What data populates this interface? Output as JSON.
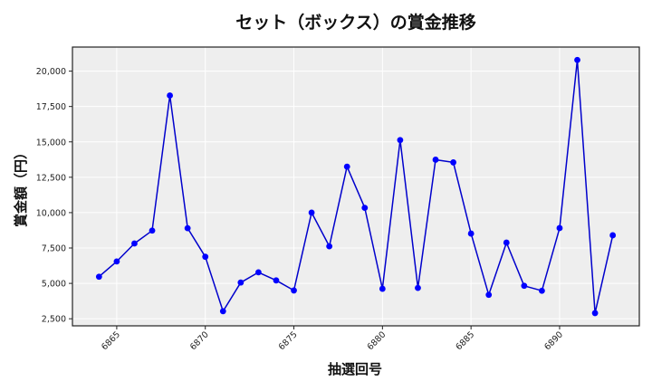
{
  "chart_data": {
    "type": "line",
    "title": "セット（ボックス）の賞金推移",
    "xlabel": "抽選回号",
    "ylabel": "賞金額（円）",
    "x": [
      6864,
      6865,
      6866,
      6867,
      6868,
      6869,
      6870,
      6871,
      6872,
      6873,
      6874,
      6875,
      6876,
      6877,
      6878,
      6879,
      6880,
      6881,
      6882,
      6883,
      6884,
      6885,
      6886,
      6887,
      6888,
      6889,
      6890,
      6891,
      6892,
      6893
    ],
    "series": [
      {
        "name": "賞金額",
        "color": "#0000cc",
        "marker_color": "#0000ff",
        "values": [
          5470,
          6550,
          7820,
          8730,
          18280,
          8900,
          6880,
          3030,
          5060,
          5780,
          5210,
          4500,
          10000,
          7620,
          13250,
          10340,
          4620,
          15130,
          4680,
          13740,
          13550,
          8520,
          4190,
          7880,
          4830,
          4480,
          8910,
          20790,
          2900,
          8400
        ]
      }
    ],
    "xticks": [
      6865,
      6870,
      6875,
      6880,
      6885,
      6890
    ],
    "yticks": [
      2500,
      5000,
      7500,
      10000,
      12500,
      15000,
      17500,
      20000
    ],
    "ytick_labels": [
      "2,500",
      "5,000",
      "7,500",
      "10,000",
      "12,500",
      "15,000",
      "17,500",
      "20,000"
    ],
    "xlim": [
      6862.5,
      6894.5
    ],
    "ylim": [
      2000,
      21700
    ],
    "grid": true,
    "legend": null,
    "colors": {
      "plot_background": "#eeeeee",
      "grid": "#ffffff",
      "frame": "#222222"
    }
  }
}
